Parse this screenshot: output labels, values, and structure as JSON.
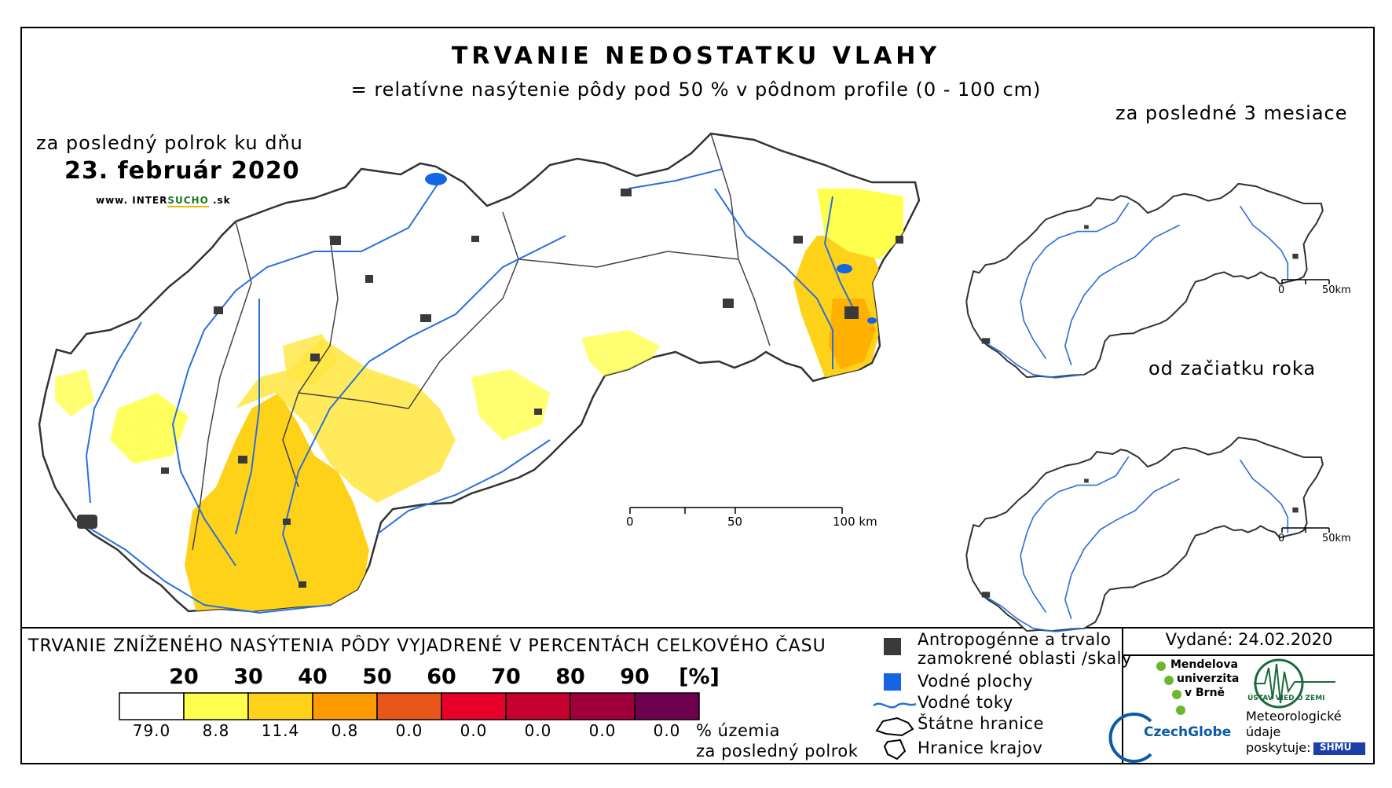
{
  "title": "TRVANIE NEDOSTATKU VLAHY",
  "subtitle": "= relatívne nasýtenie pôdy pod 50 % v pôdnom profile (0 - 100 cm)",
  "main_map": {
    "period_label": "za posledný polrok ku dňu",
    "date": "23. február 2020",
    "website": {
      "prefix": "www. INTER",
      "highlight": "SUCHO",
      "suffix": " .sk"
    },
    "scale_labels": [
      "0",
      "50",
      "100 km"
    ]
  },
  "inset_top": {
    "label": "za posledné 3 mesiace",
    "scale_labels": [
      "0",
      "50km"
    ]
  },
  "inset_bottom": {
    "label": "od začiatku roka",
    "scale_labels": [
      "0",
      "50km"
    ]
  },
  "legend": {
    "title": "TRVANIE ZNÍŽENÉHO NASÝTENIA PÔDY VYJADRENÉ V PERCENTÁCH CELKOVÉHO ČASU",
    "bin_edges": [
      "20",
      "30",
      "40",
      "50",
      "60",
      "70",
      "80",
      "90",
      "[%]"
    ],
    "classes": [
      {
        "color": "#ffffff",
        "share": "79.0"
      },
      {
        "color": "#ffff4d",
        "share": "8.8"
      },
      {
        "color": "#ffd21a",
        "share": "11.4"
      },
      {
        "color": "#ff9a00",
        "share": "0.8"
      },
      {
        "color": "#e8561a",
        "share": "0.0"
      },
      {
        "color": "#e8002a",
        "share": "0.0"
      },
      {
        "color": "#c4002e",
        "share": "0.0"
      },
      {
        "color": "#a0003a",
        "share": "0.0"
      },
      {
        "color": "#6e0050",
        "share": "0.0"
      }
    ],
    "share_caption_1": "% územia",
    "share_caption_2": "za posledný polrok",
    "symbols": {
      "anthropogenic_1": "Antropogénne a trvalo",
      "anthropogenic_2": "zamokrené oblasti /skaly",
      "water_bodies": "Vodné plochy",
      "rivers": "Vodné toky",
      "state_border": "Štátne hranice",
      "region_border": "Hranice krajov"
    }
  },
  "issued": "Vydané: 24.02.2020",
  "logos": {
    "mendel_1": "Mendelova",
    "mendel_2": "univerzita",
    "mendel_3": "v Brně",
    "czechglobe": "CzechGlobe",
    "uvgz": "ÚSTAV VIED O ZEMI",
    "meteo_1": "Meteorologické",
    "meteo_2": "údaje",
    "meteo_3": "poskytuje:",
    "shmu": "SHMÚ"
  },
  "colors": {
    "anthropogenic": "#3a3a3a",
    "water": "#1464e6",
    "river": "#2a6fdc",
    "border": "#333333"
  }
}
